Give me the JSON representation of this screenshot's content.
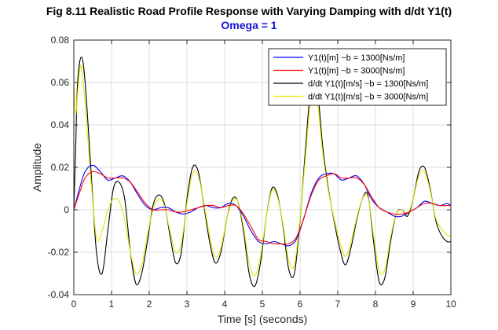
{
  "chart_data": {
    "type": "line",
    "title": "Fig 8.11 Realistic Road Profile Response with Varying Damping with d/dt Y1(t)",
    "subtitle": "Omega = 1",
    "xlabel": "Time [s] (seconds)",
    "ylabel": "Amplitude",
    "xlim": [
      0,
      10
    ],
    "ylim": [
      -0.04,
      0.08
    ],
    "xticks": [
      0,
      1,
      2,
      3,
      4,
      5,
      6,
      7,
      8,
      9,
      10
    ],
    "xtick_labels": [
      "0",
      "1",
      "2",
      "3",
      "4",
      "5",
      "6",
      "7",
      "8",
      "9",
      "10"
    ],
    "yticks": [
      -0.04,
      -0.02,
      0,
      0.02,
      0.04,
      0.06,
      0.08
    ],
    "ytick_labels": [
      "-0.04",
      "-0.02",
      "0",
      "0.02",
      "0.04",
      "0.06",
      "0.08"
    ],
    "grid": true,
    "legend_position": "top-right",
    "series": [
      {
        "name": "Y1(t)[m] ~b = 1300[Ns/m]",
        "color": "#0000ff",
        "x": [
          0,
          0.15,
          0.3,
          0.5,
          0.7,
          0.9,
          1.1,
          1.3,
          1.5,
          1.7,
          1.9,
          2.1,
          2.3,
          2.5,
          2.7,
          2.9,
          3.1,
          3.3,
          3.5,
          3.7,
          3.9,
          4.1,
          4.3,
          4.5,
          4.7,
          4.9,
          5.1,
          5.3,
          5.5,
          5.7,
          5.9,
          6.1,
          6.3,
          6.5,
          6.7,
          6.9,
          7.1,
          7.3,
          7.5,
          7.7,
          7.9,
          8.1,
          8.3,
          8.5,
          8.7,
          8.9,
          9.1,
          9.3,
          9.5,
          9.7,
          9.9,
          10
        ],
        "y": [
          0,
          0.01,
          0.018,
          0.021,
          0.018,
          0.014,
          0.015,
          0.016,
          0.013,
          0.007,
          0.002,
          0,
          0.001,
          0.001,
          -0.001,
          -0.002,
          -0.001,
          0.001,
          0.002,
          0.001,
          0.001,
          0.003,
          0.002,
          -0.003,
          -0.01,
          -0.015,
          -0.016,
          -0.015,
          -0.016,
          -0.017,
          -0.014,
          -0.004,
          0.008,
          0.015,
          0.017,
          0.017,
          0.014,
          0.015,
          0.016,
          0.012,
          0.005,
          0.001,
          -0.001,
          -0.003,
          -0.003,
          -0.001,
          0.001,
          0.004,
          0.003,
          0.002,
          0.003,
          0.002
        ]
      },
      {
        "name": "Y1(t)[m] ~b = 3000[Ns/m]",
        "color": "#ff0000",
        "x": [
          0,
          0.15,
          0.3,
          0.5,
          0.7,
          0.9,
          1.1,
          1.3,
          1.5,
          1.7,
          1.9,
          2.1,
          2.3,
          2.5,
          2.7,
          2.9,
          3.1,
          3.3,
          3.5,
          3.7,
          3.9,
          4.1,
          4.3,
          4.5,
          4.7,
          4.9,
          5.1,
          5.3,
          5.5,
          5.7,
          5.9,
          6.1,
          6.3,
          6.5,
          6.7,
          6.9,
          7.1,
          7.3,
          7.5,
          7.7,
          7.9,
          8.1,
          8.3,
          8.5,
          8.7,
          8.9,
          9.1,
          9.3,
          9.5,
          9.7,
          9.9,
          10
        ],
        "y": [
          0,
          0.008,
          0.015,
          0.018,
          0.017,
          0.015,
          0.015,
          0.015,
          0.013,
          0.008,
          0.003,
          0,
          0,
          0,
          -0.001,
          -0.001,
          0,
          0.001,
          0.002,
          0.002,
          0.001,
          0.002,
          0.002,
          -0.002,
          -0.008,
          -0.014,
          -0.015,
          -0.016,
          -0.016,
          -0.016,
          -0.013,
          -0.004,
          0.007,
          0.014,
          0.016,
          0.017,
          0.015,
          0.015,
          0.015,
          0.012,
          0.006,
          0.001,
          -0.001,
          -0.002,
          -0.002,
          -0.001,
          0.001,
          0.003,
          0.003,
          0.002,
          0.002,
          0.002
        ]
      },
      {
        "name": "d/dt Y1(t)[m/s] ~b = 1300[Ns/m]",
        "color": "#000000",
        "x": [
          0,
          0.05,
          0.1,
          0.2,
          0.3,
          0.45,
          0.6,
          0.75,
          0.9,
          1.05,
          1.2,
          1.35,
          1.5,
          1.65,
          1.8,
          1.95,
          2.1,
          2.25,
          2.4,
          2.55,
          2.7,
          2.85,
          3.0,
          3.15,
          3.3,
          3.45,
          3.6,
          3.75,
          3.9,
          4.05,
          4.2,
          4.35,
          4.5,
          4.65,
          4.8,
          4.95,
          5.1,
          5.25,
          5.4,
          5.55,
          5.7,
          5.85,
          6.0,
          6.15,
          6.3,
          6.45,
          6.6,
          6.75,
          6.9,
          7.05,
          7.2,
          7.35,
          7.5,
          7.65,
          7.8,
          7.95,
          8.1,
          8.25,
          8.4,
          8.55,
          8.7,
          8.85,
          9.0,
          9.15,
          9.3,
          9.45,
          9.6,
          9.75,
          9.9,
          10
        ],
        "y": [
          0,
          0.03,
          0.06,
          0.072,
          0.06,
          0.02,
          -0.02,
          -0.03,
          -0.01,
          0.01,
          0.013,
          0.005,
          -0.02,
          -0.035,
          -0.03,
          -0.015,
          0.002,
          0.007,
          0.003,
          -0.012,
          -0.025,
          -0.02,
          0.005,
          0.02,
          0.018,
          0.002,
          -0.015,
          -0.025,
          -0.02,
          -0.005,
          0.005,
          0.004,
          -0.01,
          -0.03,
          -0.036,
          -0.025,
          -0.004,
          0.01,
          0.007,
          -0.008,
          -0.028,
          -0.03,
          -0.005,
          0.03,
          0.06,
          0.058,
          0.03,
          0.01,
          -0.005,
          -0.018,
          -0.026,
          -0.018,
          -0.005,
          0.005,
          0.007,
          -0.015,
          -0.034,
          -0.032,
          -0.015,
          -0.002,
          0,
          -0.003,
          0.005,
          0.018,
          0.02,
          0.01,
          -0.005,
          -0.012,
          -0.015,
          -0.015
        ]
      },
      {
        "name": "d/dt Y1(t)[m/s] ~b = 3000[Ns/m]",
        "color": "#e6e600",
        "x": [
          0,
          0.05,
          0.1,
          0.15,
          0.2,
          0.3,
          0.45,
          0.6,
          0.75,
          0.9,
          1.05,
          1.2,
          1.35,
          1.5,
          1.65,
          1.8,
          1.95,
          2.1,
          2.25,
          2.4,
          2.55,
          2.7,
          2.85,
          3.0,
          3.15,
          3.3,
          3.45,
          3.6,
          3.75,
          3.9,
          4.05,
          4.2,
          4.35,
          4.5,
          4.65,
          4.8,
          4.95,
          5.1,
          5.25,
          5.4,
          5.55,
          5.7,
          5.85,
          6.0,
          6.15,
          6.3,
          6.45,
          6.6,
          6.75,
          6.9,
          7.05,
          7.2,
          7.35,
          7.5,
          7.65,
          7.8,
          7.95,
          8.1,
          8.25,
          8.4,
          8.55,
          8.7,
          8.85,
          9.0,
          9.15,
          9.3,
          9.45,
          9.6,
          9.75,
          9.9,
          10
        ],
        "y": [
          0.06,
          0.045,
          0.055,
          0.065,
          0.067,
          0.05,
          0.015,
          -0.013,
          -0.01,
          0.0,
          0.005,
          0.004,
          -0.005,
          -0.02,
          -0.03,
          -0.026,
          -0.012,
          0.0,
          0.005,
          0.002,
          -0.01,
          -0.02,
          -0.016,
          0.003,
          0.017,
          0.016,
          0.003,
          -0.012,
          -0.022,
          -0.018,
          -0.005,
          0.004,
          0.004,
          -0.008,
          -0.025,
          -0.031,
          -0.022,
          -0.004,
          0.009,
          0.006,
          -0.007,
          -0.024,
          -0.026,
          -0.004,
          0.026,
          0.055,
          0.052,
          0.027,
          0.009,
          -0.004,
          -0.015,
          -0.022,
          -0.015,
          -0.004,
          0.005,
          0.006,
          -0.012,
          -0.029,
          -0.028,
          -0.013,
          -0.002,
          0,
          -0.002,
          0.005,
          0.016,
          0.018,
          0.009,
          -0.004,
          -0.009,
          -0.012,
          -0.012
        ]
      }
    ]
  }
}
